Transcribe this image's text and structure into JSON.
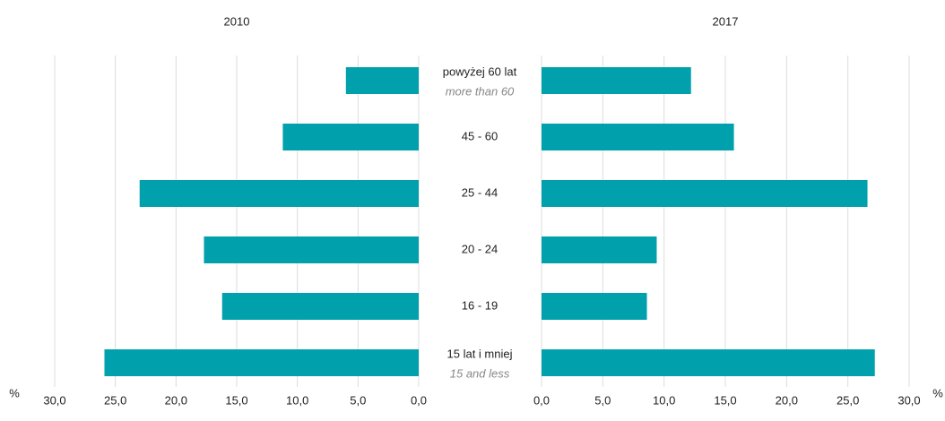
{
  "chart_data": [
    {
      "type": "bar",
      "orientation": "horizontal",
      "title": "2010",
      "xlabel": "%",
      "x_reversed": true,
      "color": "#00a0ac",
      "grid": true,
      "categories": [
        "powyżej 60 lat",
        "45 - 60",
        "25 - 44",
        "20 - 24",
        "16 - 19",
        "15 lat i mniej"
      ],
      "category_translations": [
        "more than 60",
        null,
        null,
        null,
        null,
        "15 and less"
      ],
      "values": [
        6.0,
        11.2,
        23.0,
        17.7,
        16.2,
        25.9
      ],
      "xlim": [
        0,
        30
      ],
      "xticks": [
        {
          "value": 0,
          "label": "0,0"
        },
        {
          "value": 5,
          "label": "5,0"
        },
        {
          "value": 10,
          "label": "10,0"
        },
        {
          "value": 15,
          "label": "15,0"
        },
        {
          "value": 20,
          "label": "20,0"
        },
        {
          "value": 25,
          "label": "25,0"
        },
        {
          "value": 30,
          "label": "30,0"
        }
      ]
    },
    {
      "type": "bar",
      "orientation": "horizontal",
      "title": "2017",
      "xlabel": "%",
      "x_reversed": false,
      "color": "#00a0ac",
      "grid": true,
      "values": [
        12.2,
        15.7,
        26.6,
        9.4,
        8.6,
        27.2
      ],
      "xlim": [
        0,
        30
      ],
      "xticks": [
        {
          "value": 0,
          "label": "0,0"
        },
        {
          "value": 5,
          "label": "5,0"
        },
        {
          "value": 10,
          "label": "10,0"
        },
        {
          "value": 15,
          "label": "15,0"
        },
        {
          "value": 20,
          "label": "20,0"
        },
        {
          "value": 25,
          "label": "25,0"
        },
        {
          "value": 30,
          "label": "30,0"
        }
      ]
    }
  ]
}
